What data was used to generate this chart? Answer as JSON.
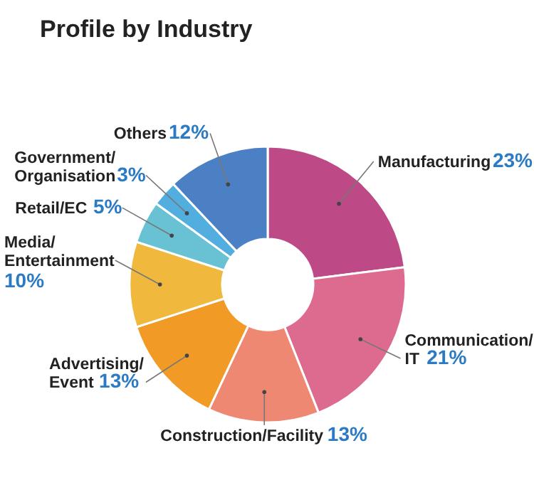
{
  "chart_data": {
    "type": "donut",
    "title": "Profile by Industry",
    "categories": [
      "Manufacturing",
      "Communication/IT",
      "Construction/Facility",
      "Advertising/Event",
      "Media/Entertainment",
      "Retail/EC",
      "Government/Organisation",
      "Others"
    ],
    "values": [
      23,
      21,
      13,
      13,
      10,
      5,
      3,
      12
    ],
    "value_labels": [
      "23%",
      "21%",
      "13%",
      "13%",
      "10%",
      "5%",
      "3%",
      "12%"
    ],
    "colors": [
      "#bd4a86",
      "#dd6b8f",
      "#ef8872",
      "#f29a26",
      "#f0b93e",
      "#68c2d3",
      "#53aee0",
      "#4b80c4"
    ]
  }
}
